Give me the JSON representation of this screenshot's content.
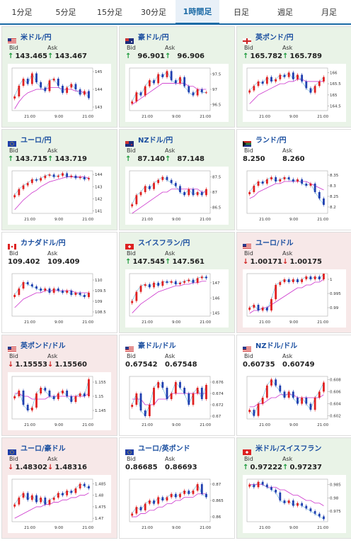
{
  "tabs": [
    "1分足",
    "5分足",
    "15分足",
    "30分足",
    "1時間足",
    "日足",
    "週足",
    "月足"
  ],
  "active_tab_index": 4,
  "bid_label": "Bid",
  "ask_label": "Ask",
  "cards": [
    {
      "pair": "米ドル/円",
      "flag": "us",
      "trend": "up",
      "bid": "143.465",
      "ask": "143.467",
      "y_ticks": [
        "145",
        "144",
        "143"
      ],
      "y_min": 142.8,
      "y_max": 145.2,
      "x_ticks": [
        "21:00",
        "9:00",
        "21:00"
      ],
      "chart_data": {
        "type": "line",
        "values": [
          143.6,
          144.2,
          144.6,
          144.3,
          144.9,
          144.4,
          144.1,
          143.9,
          144.5,
          144.6,
          144.2,
          143.8,
          144.1,
          144.3,
          144.0,
          143.7,
          143.9,
          143.5
        ],
        "ma": [
          142.9,
          143.3,
          143.6,
          143.8,
          143.9,
          144.0,
          144.0,
          144.0,
          144.1,
          144.1,
          144.1,
          144.0,
          144.0,
          144.0,
          143.9,
          143.9,
          143.8,
          143.8
        ]
      }
    },
    {
      "pair": "豪ドル/円",
      "flag": "au",
      "trend": "up",
      "bid": "96.901",
      "ask": "96.906",
      "y_ticks": [
        "97.5",
        "97",
        "96.5"
      ],
      "y_min": 96.3,
      "y_max": 97.7,
      "x_ticks": [
        "21:00",
        "9:00",
        "21:00"
      ],
      "chart_data": {
        "type": "line",
        "values": [
          96.6,
          96.9,
          96.8,
          97.1,
          97.3,
          97.2,
          97.5,
          97.4,
          97.6,
          97.3,
          97.2,
          97.4,
          97.1,
          96.9,
          96.8,
          97.0,
          96.9,
          96.9
        ],
        "ma": [
          96.5,
          96.6,
          96.7,
          96.8,
          96.9,
          97.0,
          97.1,
          97.2,
          97.2,
          97.2,
          97.2,
          97.2,
          97.2,
          97.1,
          97.1,
          97.0,
          97.0,
          97.0
        ]
      }
    },
    {
      "pair": "英ポンド/円",
      "flag": "gb",
      "trend": "up",
      "bid": "165.782",
      "ask": "165.789",
      "y_ticks": [
        "166",
        "165.5",
        "165",
        "164.5"
      ],
      "y_min": 164.3,
      "y_max": 166.2,
      "x_ticks": [
        "21:00",
        "9:00",
        "21:00"
      ],
      "chart_data": {
        "type": "line",
        "values": [
          165.2,
          165.4,
          165.6,
          165.5,
          165.8,
          165.6,
          165.7,
          165.9,
          165.8,
          166.0,
          165.7,
          165.9,
          165.6,
          165.3,
          165.1,
          165.4,
          165.6,
          165.8
        ],
        "ma": [
          164.6,
          164.8,
          165.0,
          165.1,
          165.2,
          165.3,
          165.4,
          165.5,
          165.5,
          165.6,
          165.6,
          165.7,
          165.7,
          165.6,
          165.6,
          165.6,
          165.6,
          165.6
        ]
      }
    },
    {
      "pair": "ユーロ/円",
      "flag": "eu",
      "trend": "up",
      "bid": "143.715",
      "ask": "143.719",
      "y_ticks": [
        "144",
        "143",
        "142",
        "141"
      ],
      "y_min": 140.8,
      "y_max": 144.3,
      "x_ticks": [
        "21:00",
        "9:00",
        "21:00"
      ],
      "chart_data": {
        "type": "line",
        "values": [
          142.3,
          142.8,
          143.1,
          143.3,
          143.6,
          143.5,
          143.7,
          143.9,
          144.0,
          143.8,
          143.9,
          144.1,
          143.8,
          143.9,
          143.7,
          143.8,
          143.6,
          143.7
        ],
        "ma": [
          141.1,
          141.5,
          141.9,
          142.2,
          142.5,
          142.7,
          143.0,
          143.2,
          143.4,
          143.5,
          143.6,
          143.7,
          143.8,
          143.8,
          143.8,
          143.8,
          143.8,
          143.7
        ]
      }
    },
    {
      "pair": "NZドル/円",
      "flag": "nz",
      "trend": "up",
      "bid": "87.140",
      "ask": "87.148",
      "y_ticks": [
        "87.5",
        "87",
        "86.5"
      ],
      "y_min": 86.3,
      "y_max": 87.7,
      "x_ticks": [
        "21:00",
        "9:00",
        "21:00"
      ],
      "chart_data": {
        "type": "line",
        "values": [
          86.6,
          86.9,
          87.0,
          87.2,
          87.1,
          87.3,
          87.4,
          87.5,
          87.4,
          87.3,
          87.2,
          87.0,
          86.9,
          87.1,
          86.9,
          87.0,
          86.9,
          87.1
        ],
        "ma": [
          86.3,
          86.4,
          86.5,
          86.6,
          86.7,
          86.8,
          86.9,
          87.0,
          87.0,
          87.1,
          87.1,
          87.1,
          87.1,
          87.1,
          87.1,
          87.1,
          87.0,
          87.0
        ]
      }
    },
    {
      "pair": "ランド/円",
      "flag": "za",
      "trend": "flat",
      "bid": "8.250",
      "ask": "8.260",
      "y_ticks": [
        "8.35",
        "8.3",
        "8.25",
        "8.2"
      ],
      "y_min": 8.17,
      "y_max": 8.37,
      "x_ticks": [
        "21:00",
        "9:00",
        "21:00"
      ],
      "chart_data": {
        "type": "line",
        "values": [
          8.27,
          8.3,
          8.32,
          8.31,
          8.33,
          8.34,
          8.32,
          8.33,
          8.34,
          8.33,
          8.32,
          8.33,
          8.31,
          8.3,
          8.31,
          8.27,
          8.24,
          8.21
        ],
        "ma": [
          8.24,
          8.25,
          8.27,
          8.28,
          8.29,
          8.3,
          8.31,
          8.31,
          8.32,
          8.32,
          8.32,
          8.32,
          8.32,
          8.32,
          8.31,
          8.3,
          8.29,
          8.28
        ]
      }
    },
    {
      "pair": "カナダドル/円",
      "flag": "ca",
      "trend": "flat",
      "bid": "109.402",
      "ask": "109.409",
      "y_ticks": [
        "110",
        "109.5",
        "109",
        "108.5"
      ],
      "y_min": 108.3,
      "y_max": 110.3,
      "x_ticks": [
        "21:00",
        "9:00",
        "21:00"
      ],
      "chart_data": {
        "type": "line",
        "values": [
          109.3,
          109.6,
          109.9,
          109.8,
          109.7,
          109.6,
          109.5,
          109.6,
          109.4,
          109.6,
          109.5,
          109.4,
          109.5,
          109.3,
          109.4,
          109.3,
          109.2,
          109.4
        ],
        "ma": [
          108.7,
          108.9,
          109.1,
          109.2,
          109.3,
          109.4,
          109.4,
          109.5,
          109.5,
          109.5,
          109.5,
          109.5,
          109.5,
          109.5,
          109.4,
          109.4,
          109.4,
          109.4
        ]
      }
    },
    {
      "pair": "スイスフラン/円",
      "flag": "ch",
      "trend": "up",
      "bid": "147.545",
      "ask": "147.561",
      "y_ticks": [
        "147",
        "146",
        "145"
      ],
      "y_min": 144.8,
      "y_max": 147.6,
      "x_ticks": [
        "21:00",
        "9:00",
        "21:00"
      ],
      "chart_data": {
        "type": "line",
        "values": [
          145.8,
          146.4,
          146.8,
          146.9,
          146.7,
          147.0,
          146.8,
          147.1,
          147.0,
          147.1,
          146.9,
          147.0,
          147.1,
          147.2,
          147.0,
          147.3,
          147.4,
          147.3
        ],
        "ma": [
          145.0,
          145.3,
          145.6,
          145.8,
          146.0,
          146.2,
          146.4,
          146.5,
          146.6,
          146.7,
          146.8,
          146.8,
          146.9,
          146.9,
          147.0,
          147.0,
          147.1,
          147.1
        ]
      }
    },
    {
      "pair": "ユーロ/ドル",
      "flag": "us",
      "trend": "down",
      "bid": "1.00171",
      "ask": "1.00175",
      "y_ticks": [
        "1",
        "0.995",
        "0.99"
      ],
      "y_min": 0.987,
      "y_max": 1.002,
      "x_ticks": [
        "21:00",
        "9:00",
        "21:00"
      ],
      "chart_data": {
        "type": "line",
        "values": [
          0.99,
          0.991,
          0.989,
          0.99,
          0.989,
          0.993,
          0.998,
          0.999,
          1.0,
          0.999,
          1.0,
          0.999,
          1.0,
          1.001,
          1.0,
          1.001,
          1.0,
          1.002
        ],
        "ma": [
          0.988,
          0.989,
          0.989,
          0.99,
          0.99,
          0.991,
          0.992,
          0.993,
          0.994,
          0.995,
          0.996,
          0.997,
          0.997,
          0.998,
          0.998,
          0.999,
          0.999,
          1.0
        ]
      }
    },
    {
      "pair": "英ポンド/ドル",
      "flag": "us",
      "trend": "down",
      "bid": "1.15553",
      "ask": "1.15560",
      "y_ticks": [
        "1.155",
        "1.15",
        "1.145"
      ],
      "y_min": 1.142,
      "y_max": 1.157,
      "x_ticks": [
        "21:00",
        "9:00",
        "21:00"
      ],
      "chart_data": {
        "type": "line",
        "values": [
          1.15,
          1.152,
          1.147,
          1.145,
          1.146,
          1.151,
          1.153,
          1.152,
          1.15,
          1.149,
          1.151,
          1.152,
          1.15,
          1.148,
          1.15,
          1.151,
          1.15,
          1.156
        ],
        "ma": [
          1.151,
          1.151,
          1.15,
          1.15,
          1.149,
          1.149,
          1.149,
          1.149,
          1.15,
          1.15,
          1.15,
          1.15,
          1.15,
          1.15,
          1.15,
          1.15,
          1.15,
          1.151
        ]
      }
    },
    {
      "pair": "豪ドル/ドル",
      "flag": "us",
      "trend": "flat",
      "bid": "0.67542",
      "ask": "0.67548",
      "y_ticks": [
        "0.676",
        "0.674",
        "0.672",
        "0.67"
      ],
      "y_min": 0.6695,
      "y_max": 0.677,
      "x_ticks": [
        "21:00",
        "9:00",
        "21:00"
      ],
      "chart_data": {
        "type": "line",
        "values": [
          0.672,
          0.674,
          0.671,
          0.67,
          0.672,
          0.675,
          0.676,
          0.675,
          0.673,
          0.674,
          0.676,
          0.675,
          0.674,
          0.672,
          0.674,
          0.675,
          0.673,
          0.6755
        ],
        "ma": [
          0.673,
          0.673,
          0.673,
          0.672,
          0.672,
          0.672,
          0.673,
          0.673,
          0.673,
          0.674,
          0.674,
          0.674,
          0.674,
          0.674,
          0.674,
          0.674,
          0.674,
          0.674
        ]
      }
    },
    {
      "pair": "NZドル/ドル",
      "flag": "us",
      "trend": "flat",
      "bid": "0.60735",
      "ask": "0.60749",
      "y_ticks": [
        "0.608",
        "0.606",
        "0.604",
        "0.602"
      ],
      "y_min": 0.6015,
      "y_max": 0.6085,
      "x_ticks": [
        "21:00",
        "9:00",
        "21:00"
      ],
      "chart_data": {
        "type": "line",
        "values": [
          0.603,
          0.602,
          0.604,
          0.605,
          0.607,
          0.608,
          0.607,
          0.606,
          0.605,
          0.606,
          0.605,
          0.604,
          0.605,
          0.604,
          0.603,
          0.605,
          0.606,
          0.6075
        ],
        "ma": [
          0.6035,
          0.6035,
          0.604,
          0.604,
          0.6045,
          0.605,
          0.605,
          0.6055,
          0.6055,
          0.6055,
          0.6055,
          0.605,
          0.605,
          0.605,
          0.605,
          0.605,
          0.605,
          0.6055
        ]
      }
    },
    {
      "pair": "ユーロ/豪ドル",
      "flag": "eu",
      "trend": "down",
      "bid": "1.48302",
      "ask": "1.48316",
      "y_ticks": [
        "1.485",
        "1.48",
        "1.475",
        "1.47"
      ],
      "y_min": 1.4685,
      "y_max": 1.487,
      "x_ticks": [
        "21:00",
        "9:00",
        "21:00"
      ],
      "chart_data": {
        "type": "line",
        "values": [
          1.476,
          1.479,
          1.481,
          1.478,
          1.48,
          1.477,
          1.479,
          1.476,
          1.478,
          1.479,
          1.481,
          1.48,
          1.482,
          1.481,
          1.483,
          1.485,
          1.484,
          1.483
        ],
        "ma": [
          1.47,
          1.471,
          1.472,
          1.473,
          1.474,
          1.475,
          1.475,
          1.476,
          1.476,
          1.477,
          1.477,
          1.478,
          1.478,
          1.479,
          1.479,
          1.48,
          1.48,
          1.481
        ]
      }
    },
    {
      "pair": "ユーロ/英ポンド",
      "flag": "eu",
      "trend": "flat",
      "bid": "0.86685",
      "ask": "0.86693",
      "y_ticks": [
        "0.87",
        "0.865",
        "0.86"
      ],
      "y_min": 0.8585,
      "y_max": 0.8715,
      "x_ticks": [
        "21:00",
        "9:00",
        "21:00"
      ],
      "chart_data": {
        "type": "line",
        "values": [
          0.861,
          0.863,
          0.862,
          0.864,
          0.865,
          0.864,
          0.866,
          0.865,
          0.866,
          0.867,
          0.866,
          0.867,
          0.868,
          0.867,
          0.868,
          0.87,
          0.867,
          0.866
        ],
        "ma": [
          0.86,
          0.86,
          0.861,
          0.861,
          0.862,
          0.862,
          0.863,
          0.863,
          0.864,
          0.864,
          0.865,
          0.865,
          0.866,
          0.866,
          0.866,
          0.867,
          0.867,
          0.867
        ]
      }
    },
    {
      "pair": "米ドル/スイスフラン",
      "flag": "ch",
      "trend": "up",
      "bid": "0.97222",
      "ask": "0.97237",
      "y_ticks": [
        "0.985",
        "0.98",
        "0.975"
      ],
      "y_min": 0.971,
      "y_max": 0.987,
      "x_ticks": [
        "21:00",
        "9:00",
        "21:00"
      ],
      "chart_data": {
        "type": "line",
        "values": [
          0.985,
          0.984,
          0.986,
          0.985,
          0.984,
          0.983,
          0.982,
          0.979,
          0.978,
          0.979,
          0.977,
          0.978,
          0.977,
          0.976,
          0.975,
          0.974,
          0.973,
          0.972
        ],
        "ma": [
          0.985,
          0.985,
          0.985,
          0.985,
          0.984,
          0.984,
          0.984,
          0.983,
          0.983,
          0.982,
          0.981,
          0.981,
          0.98,
          0.979,
          0.979,
          0.978,
          0.978,
          0.977
        ]
      }
    }
  ],
  "colors": {
    "up": "#1a9a3a",
    "down": "#d0201f",
    "bull": "#e02020",
    "bear": "#1f3fb0",
    "ma": "#cc33cc",
    "ma2": "#2a9ad0",
    "accent": "#1b6aa5"
  }
}
